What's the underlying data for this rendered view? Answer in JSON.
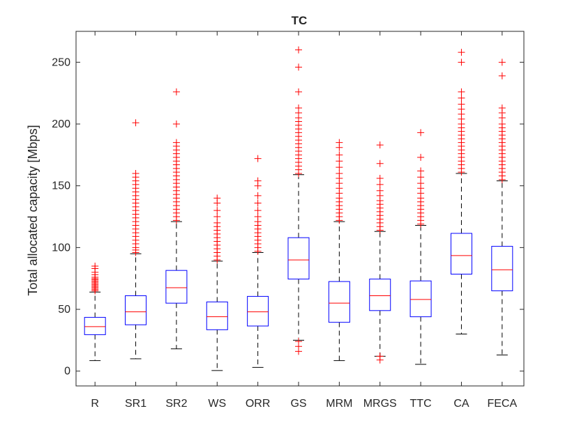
{
  "chart_data": {
    "type": "boxplot",
    "title": "TC",
    "xlabel": "",
    "ylabel": "Total allocated capacity [Mbps]",
    "ylim": [
      -12,
      275
    ],
    "yticks": [
      0,
      50,
      100,
      150,
      200,
      250
    ],
    "categories": [
      "R",
      "SR1",
      "SR2",
      "WS",
      "ORR",
      "GS",
      "MRM",
      "MRGS",
      "TTC",
      "CA",
      "FECA"
    ],
    "colors": {
      "box": "#0000ff",
      "median": "#ff0000",
      "whisker": "#000000",
      "outlier": "#ff0000",
      "axis": "#262626"
    },
    "boxes": [
      {
        "name": "R",
        "min": 8.5,
        "q1": 29.5,
        "median": 36,
        "q3": 43.5,
        "max": 64,
        "outliers": [
          65,
          66,
          67,
          68,
          69,
          70,
          71,
          72,
          73,
          74,
          75,
          76,
          78,
          80,
          83,
          85
        ]
      },
      {
        "name": "SR1",
        "min": 10,
        "q1": 37.5,
        "median": 48,
        "q3": 61,
        "max": 95,
        "outliers": [
          96,
          98,
          100,
          103,
          106,
          109,
          112,
          115,
          118,
          121,
          124,
          127,
          130,
          133,
          136,
          139,
          142,
          145,
          148,
          151,
          154,
          157,
          160,
          201
        ]
      },
      {
        "name": "SR2",
        "min": 18,
        "q1": 55,
        "median": 67.5,
        "q3": 81.5,
        "max": 121,
        "outliers": [
          122,
          125,
          128,
          131,
          134,
          137,
          140,
          143,
          146,
          149,
          152,
          155,
          158,
          161,
          164,
          167,
          170,
          173,
          176,
          179,
          182,
          185,
          200,
          226
        ]
      },
      {
        "name": "WS",
        "min": 0.5,
        "q1": 33.5,
        "median": 44,
        "q3": 56,
        "max": 89,
        "outliers": [
          90,
          93,
          96,
          99,
          102,
          105,
          108,
          111,
          114,
          117,
          120,
          125,
          130,
          136,
          140
        ]
      },
      {
        "name": "ORR",
        "min": 3,
        "q1": 36.5,
        "median": 48,
        "q3": 60.5,
        "max": 96,
        "outliers": [
          97,
          100,
          103,
          106,
          109,
          112,
          115,
          118,
          121,
          125,
          130,
          136,
          142,
          150,
          154,
          172
        ]
      },
      {
        "name": "GS",
        "min": 25,
        "q1": 74.5,
        "median": 90,
        "q3": 108,
        "max": 159,
        "outliers": [
          16,
          20,
          24,
          160,
          163,
          166,
          169,
          172,
          175,
          178,
          181,
          184,
          187,
          190,
          193,
          196,
          199,
          202,
          205,
          209,
          213,
          226,
          246,
          260
        ]
      },
      {
        "name": "MRM",
        "min": 8.5,
        "q1": 39.5,
        "median": 55,
        "q3": 72.5,
        "max": 121,
        "outliers": [
          122,
          125,
          128,
          131,
          134,
          137,
          140,
          144,
          148,
          152,
          156,
          160,
          165,
          170,
          175,
          181,
          185
        ]
      },
      {
        "name": "MRGS",
        "min": 12,
        "q1": 49,
        "median": 61,
        "q3": 74.5,
        "max": 113,
        "outliers": [
          9,
          12,
          114,
          117,
          120,
          123,
          126,
          129,
          132,
          135,
          138,
          142,
          146,
          151,
          156,
          168,
          183
        ]
      },
      {
        "name": "TTC",
        "min": 5.5,
        "q1": 44,
        "median": 58,
        "q3": 73,
        "max": 118,
        "outliers": [
          119,
          122,
          125,
          128,
          131,
          134,
          137,
          140,
          144,
          148,
          152,
          157,
          162,
          173,
          193
        ]
      },
      {
        "name": "CA",
        "min": 30,
        "q1": 78.5,
        "median": 93.5,
        "q3": 111.5,
        "max": 160,
        "outliers": [
          161,
          164,
          167,
          170,
          173,
          176,
          179,
          182,
          185,
          188,
          191,
          194,
          197,
          200,
          204,
          208,
          212,
          216,
          221,
          226,
          250,
          258
        ]
      },
      {
        "name": "FECA",
        "min": 13,
        "q1": 65,
        "median": 82,
        "q3": 101,
        "max": 154,
        "outliers": [
          155,
          158,
          161,
          164,
          167,
          170,
          173,
          176,
          179,
          182,
          185,
          188,
          191,
          194,
          197,
          200,
          205,
          209,
          213,
          239,
          250
        ]
      }
    ]
  }
}
